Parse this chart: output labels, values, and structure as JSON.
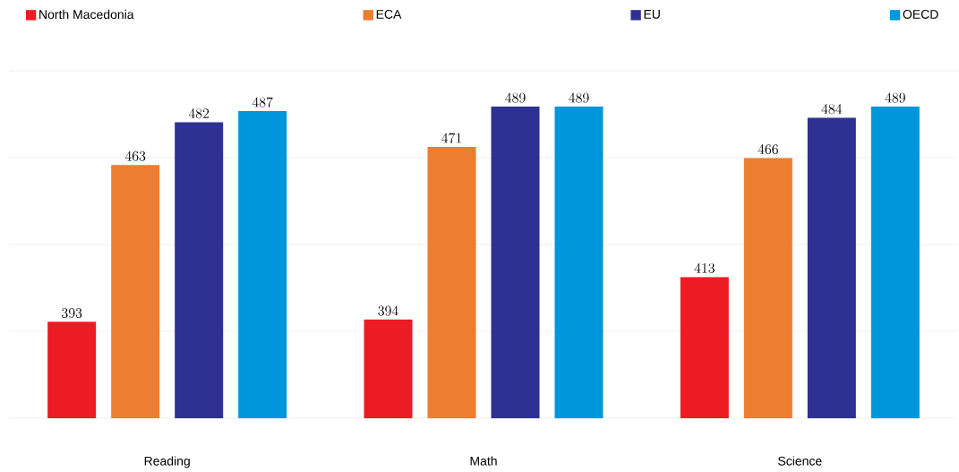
{
  "chart_data": {
    "type": "bar",
    "categories": [
      "Reading",
      "Math",
      "Science"
    ],
    "series": [
      {
        "name": "North Macedonia",
        "color": "#ed1c24",
        "values": [
          393,
          394,
          413
        ]
      },
      {
        "name": "ECA",
        "color": "#ed7d31",
        "values": [
          463,
          471,
          466
        ]
      },
      {
        "name": "EU",
        "color": "#2e3192",
        "values": [
          482,
          489,
          484
        ]
      },
      {
        "name": "OECD",
        "color": "#0096db",
        "values": [
          487,
          489,
          489
        ]
      }
    ],
    "ylim": [
      350,
      505
    ],
    "yticks": [
      {
        "value": 350,
        "label": null
      },
      {
        "value": 388.75,
        "label": null
      },
      {
        "value": 427.5,
        "label": null
      },
      {
        "value": 466.25,
        "label": null
      },
      {
        "value": 505,
        "label": null
      }
    ],
    "tick_labels": "x",
    "grid": "y",
    "data_labels": true,
    "legend": "top"
  }
}
